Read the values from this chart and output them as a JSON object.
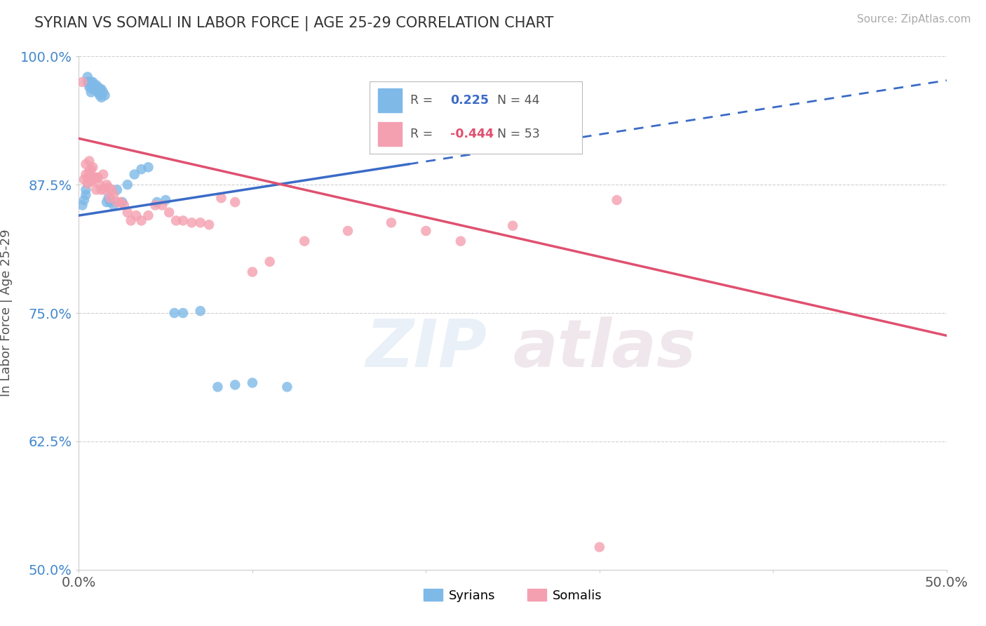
{
  "title": "SYRIAN VS SOMALI IN LABOR FORCE | AGE 25-29 CORRELATION CHART",
  "source_text": "Source: ZipAtlas.com",
  "ylabel": "In Labor Force | Age 25-29",
  "xlim": [
    0.0,
    0.5
  ],
  "ylim": [
    0.5,
    1.0
  ],
  "xticks": [
    0.0,
    0.1,
    0.2,
    0.3,
    0.4,
    0.5
  ],
  "xticklabels": [
    "0.0%",
    "",
    "",
    "",
    "",
    "50.0%"
  ],
  "yticks": [
    0.5,
    0.625,
    0.75,
    0.875,
    1.0
  ],
  "yticklabels": [
    "50.0%",
    "62.5%",
    "75.0%",
    "87.5%",
    "100.0%"
  ],
  "legend_syrian_r": "0.225",
  "legend_syrian_n": "44",
  "legend_somali_r": "-0.444",
  "legend_somali_n": "53",
  "syrian_color": "#7eb9e8",
  "somali_color": "#f4a0b0",
  "syrian_line_color": "#3b6bc7",
  "somali_line_color": "#e05070",
  "watermark_zip_color": "#b0cce8",
  "watermark_atlas_color": "#c8aabb",
  "syrian_x": [
    0.002,
    0.003,
    0.004,
    0.004,
    0.005,
    0.005,
    0.006,
    0.006,
    0.007,
    0.007,
    0.007,
    0.008,
    0.008,
    0.009,
    0.009,
    0.01,
    0.01,
    0.011,
    0.011,
    0.012,
    0.012,
    0.013,
    0.013,
    0.014,
    0.015,
    0.016,
    0.017,
    0.018,
    0.02,
    0.022,
    0.025,
    0.028,
    0.032,
    0.036,
    0.04,
    0.045,
    0.05,
    0.055,
    0.06,
    0.07,
    0.08,
    0.09,
    0.1,
    0.12
  ],
  "syrian_y": [
    0.855,
    0.86,
    0.87,
    0.865,
    0.975,
    0.98,
    0.975,
    0.97,
    0.975,
    0.97,
    0.965,
    0.975,
    0.968,
    0.968,
    0.97,
    0.968,
    0.972,
    0.97,
    0.965,
    0.968,
    0.962,
    0.968,
    0.96,
    0.965,
    0.962,
    0.858,
    0.862,
    0.858,
    0.855,
    0.87,
    0.858,
    0.875,
    0.885,
    0.89,
    0.892,
    0.858,
    0.86,
    0.75,
    0.75,
    0.752,
    0.678,
    0.68,
    0.682,
    0.678
  ],
  "somali_x": [
    0.002,
    0.003,
    0.004,
    0.004,
    0.005,
    0.005,
    0.006,
    0.006,
    0.007,
    0.007,
    0.008,
    0.008,
    0.009,
    0.01,
    0.01,
    0.011,
    0.012,
    0.013,
    0.014,
    0.015,
    0.016,
    0.017,
    0.018,
    0.019,
    0.02,
    0.022,
    0.024,
    0.026,
    0.028,
    0.03,
    0.033,
    0.036,
    0.04,
    0.044,
    0.048,
    0.052,
    0.056,
    0.06,
    0.065,
    0.07,
    0.075,
    0.082,
    0.09,
    0.1,
    0.11,
    0.13,
    0.155,
    0.18,
    0.2,
    0.22,
    0.25,
    0.3,
    0.31
  ],
  "somali_y": [
    0.975,
    0.88,
    0.895,
    0.885,
    0.882,
    0.876,
    0.898,
    0.888,
    0.89,
    0.878,
    0.892,
    0.88,
    0.882,
    0.882,
    0.87,
    0.882,
    0.875,
    0.87,
    0.885,
    0.87,
    0.875,
    0.872,
    0.862,
    0.87,
    0.865,
    0.858,
    0.858,
    0.855,
    0.848,
    0.84,
    0.845,
    0.84,
    0.845,
    0.855,
    0.855,
    0.848,
    0.84,
    0.84,
    0.838,
    0.838,
    0.836,
    0.862,
    0.858,
    0.79,
    0.8,
    0.82,
    0.83,
    0.838,
    0.83,
    0.82,
    0.835,
    0.522,
    0.86
  ],
  "background_color": "#ffffff",
  "grid_color": "#d0d0d0"
}
